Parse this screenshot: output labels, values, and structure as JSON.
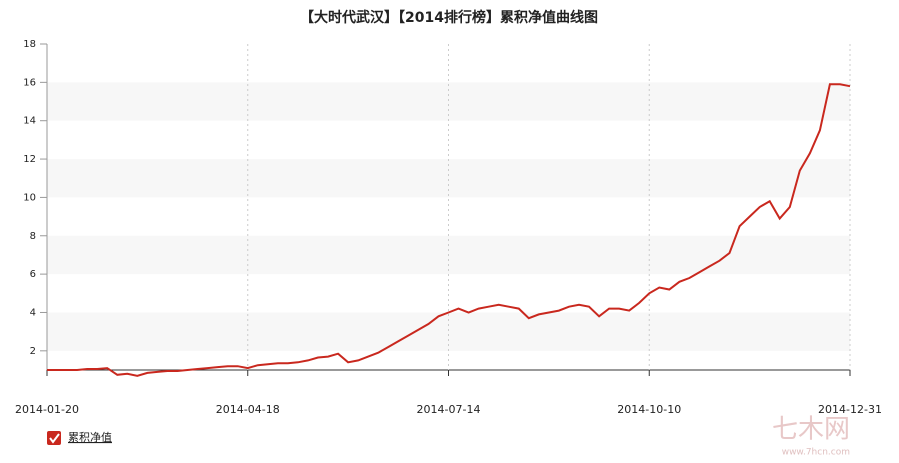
{
  "chart_data": {
    "type": "line",
    "title": "【大时代武汉】【2014排行榜】累积净值曲线图",
    "categories": [
      "2014-01-20",
      null,
      null,
      null,
      null,
      null,
      null,
      null,
      null,
      null,
      null,
      null,
      null,
      null,
      null,
      null,
      null,
      null,
      null,
      null,
      "2014-04-18",
      null,
      null,
      null,
      null,
      null,
      null,
      null,
      null,
      null,
      null,
      null,
      null,
      null,
      null,
      null,
      null,
      null,
      null,
      null,
      "2014-07-14",
      null,
      null,
      null,
      null,
      null,
      null,
      null,
      null,
      null,
      null,
      null,
      null,
      null,
      null,
      null,
      null,
      null,
      null,
      null,
      "2014-10-10",
      null,
      null,
      null,
      null,
      null,
      null,
      null,
      null,
      null,
      null,
      null,
      null,
      null,
      null,
      null,
      null,
      null,
      null,
      null,
      "2014-12-31"
    ],
    "series": [
      {
        "name": "累积净值",
        "color": "#c9281e",
        "values": [
          1.0,
          1.0,
          1.0,
          1.0,
          1.05,
          1.05,
          1.1,
          0.75,
          0.8,
          0.7,
          0.85,
          0.9,
          0.95,
          0.95,
          1.0,
          1.05,
          1.1,
          1.15,
          1.2,
          1.2,
          1.1,
          1.25,
          1.3,
          1.35,
          1.35,
          1.4,
          1.5,
          1.65,
          1.7,
          1.85,
          1.4,
          1.5,
          1.7,
          1.9,
          2.2,
          2.5,
          2.8,
          3.1,
          3.4,
          3.8,
          4.0,
          4.2,
          4.0,
          4.2,
          4.3,
          4.4,
          4.3,
          4.2,
          3.7,
          3.9,
          4.0,
          4.1,
          4.3,
          4.4,
          4.3,
          3.8,
          4.2,
          4.2,
          4.1,
          4.5,
          5.0,
          5.3,
          5.2,
          5.6,
          5.8,
          6.1,
          6.4,
          6.7,
          7.1,
          8.5,
          9.0,
          9.5,
          9.8,
          8.9,
          9.5,
          11.4,
          12.3,
          13.5,
          15.9,
          15.9,
          15.8
        ]
      }
    ],
    "ylim": [
      1,
      18
    ],
    "yticks": [
      2,
      4,
      6,
      8,
      10,
      12,
      14,
      16,
      18
    ],
    "grid": true,
    "legend": "bottom-left",
    "watermark": "七木网",
    "watermark_url": "www.7hcn.com"
  }
}
